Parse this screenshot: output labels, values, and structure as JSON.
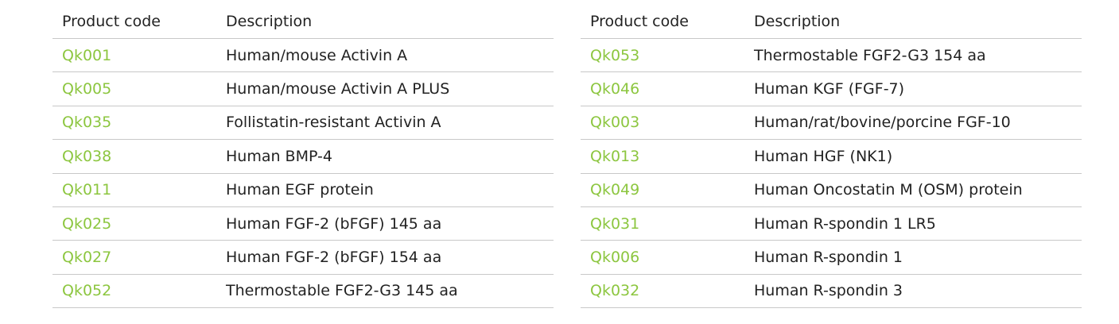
{
  "colors": {
    "code_text": "#8cc63f",
    "border": "#c8c8c8",
    "text": "#222222"
  },
  "headers": {
    "code": "Product code",
    "description": "Description"
  },
  "left_rows": [
    {
      "code": "Qk001",
      "description": "Human/mouse Activin A"
    },
    {
      "code": "Qk005",
      "description": "Human/mouse Activin A PLUS"
    },
    {
      "code": "Qk035",
      "description": "Follistatin-resistant Activin A"
    },
    {
      "code": "Qk038",
      "description": "Human BMP-4"
    },
    {
      "code": "Qk011",
      "description": "Human EGF protein"
    },
    {
      "code": "Qk025",
      "description": "Human FGF-2 (bFGF) 145 aa"
    },
    {
      "code": "Qk027",
      "description": "Human FGF-2 (bFGF) 154 aa"
    },
    {
      "code": "Qk052",
      "description": "Thermostable FGF2-G3 145 aa"
    }
  ],
  "right_rows": [
    {
      "code": "Qk053",
      "description": "Thermostable FGF2-G3 154 aa"
    },
    {
      "code": "Qk046",
      "description": "Human KGF (FGF-7)"
    },
    {
      "code": "Qk003",
      "description": "Human/rat/bovine/porcine FGF-10"
    },
    {
      "code": "Qk013",
      "description": "Human HGF (NK1)"
    },
    {
      "code": "Qk049",
      "description": "Human Oncostatin M (OSM) protein"
    },
    {
      "code": "Qk031",
      "description": "Human R-spondin 1 LR5"
    },
    {
      "code": "Qk006",
      "description": "Human R-spondin 1"
    },
    {
      "code": "Qk032",
      "description": "Human R-spondin 3"
    }
  ]
}
